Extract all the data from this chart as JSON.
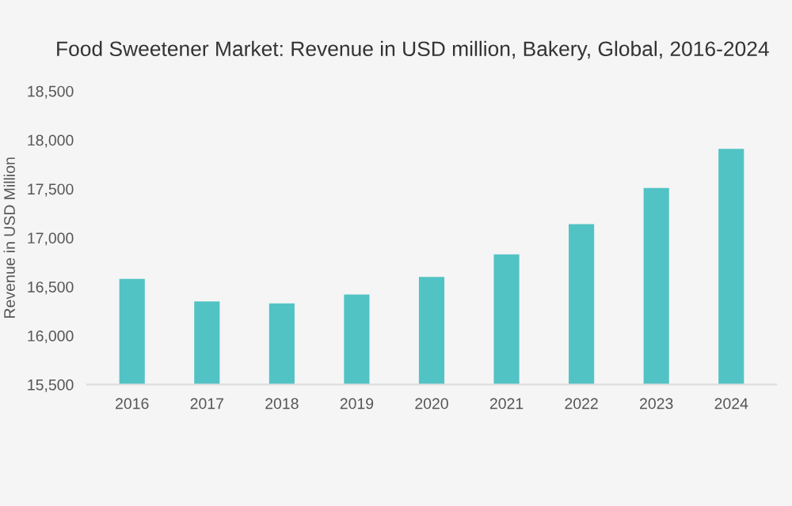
{
  "chart_data": {
    "type": "bar",
    "title": "Food Sweetener Market: Revenue in USD million, Bakery, Global, 2016-2024",
    "ylabel": "Revenue in USD Million",
    "categories": [
      "2016",
      "2017",
      "2018",
      "2019",
      "2020",
      "2021",
      "2022",
      "2023",
      "2024"
    ],
    "values": [
      16580,
      16350,
      16330,
      16420,
      16600,
      16830,
      17140,
      17510,
      17910
    ],
    "color": "#52c3c5",
    "ylim": [
      15500,
      18500
    ],
    "yticks": [
      {
        "value": 15500,
        "label": "15,500"
      },
      {
        "value": 16000,
        "label": "16,000"
      },
      {
        "value": 16500,
        "label": "16,500"
      },
      {
        "value": 17000,
        "label": "17,000"
      },
      {
        "value": 17500,
        "label": "17,500"
      },
      {
        "value": 18000,
        "label": "18,000"
      },
      {
        "value": 18500,
        "label": "18,500"
      }
    ]
  }
}
